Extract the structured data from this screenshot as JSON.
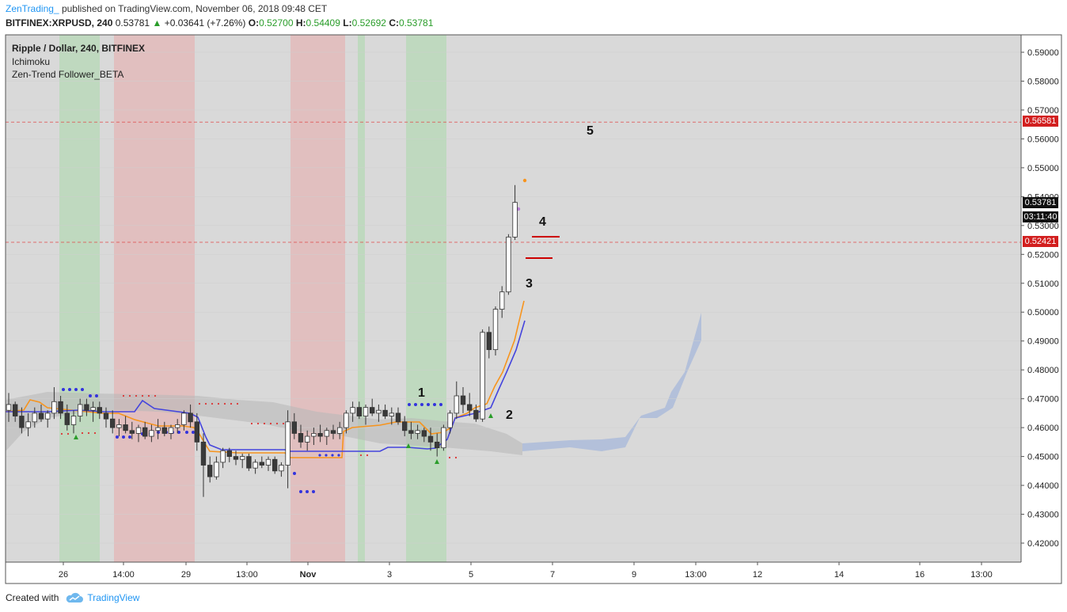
{
  "header": {
    "author": "ZenTrading_",
    "published": "published on TradingView.com, November 06, 2018 09:48 CET",
    "symbol": "BITFINEX:XRPUSD, 240",
    "last": "0.53781",
    "change": "+0.03641 (+7.26%)",
    "o_label": "O:",
    "o_val": "0.52700",
    "h_label": "H:",
    "h_val": "0.54409",
    "l_label": "L:",
    "l_val": "0.52692",
    "c_label": "C:",
    "c_val": "0.53781"
  },
  "legend": {
    "symbol": "Ripple / Dollar, 240, BITFINEX",
    "ind1": "Ichimoku",
    "ind2": "Zen-Trend Follower_BETA"
  },
  "price_tags": {
    "level_high": "0.56581",
    "last_price": "0.53781",
    "countdown": "03:11:40",
    "level_low": "0.52421"
  },
  "waves": [
    "1",
    "2",
    "3",
    "4",
    "5"
  ],
  "footer": {
    "created": "Created with",
    "brand": "TradingView"
  },
  "colors": {
    "cloud_gray": "#b9b9b9",
    "cloud_blue": "#a9b9d9",
    "tenkan": "#f7941d",
    "kijun": "#4444dd",
    "green_zone": "#a9d8a9",
    "red_zone": "#e8a9a9",
    "level_line": "#e05050"
  },
  "chart_data": {
    "type": "candlestick",
    "x_ticks": [
      "26",
      "14:00",
      "29",
      "13:00",
      "Nov",
      "3",
      "5",
      "7",
      "9",
      "13:00",
      "12",
      "14",
      "16",
      "13:00"
    ],
    "y_ticks": [
      "0.42000",
      "0.43000",
      "0.44000",
      "0.45000",
      "0.46000",
      "0.47000",
      "0.48000",
      "0.49000",
      "0.50000",
      "0.51000",
      "0.52000",
      "0.53000",
      "0.54000",
      "0.55000",
      "0.56000",
      "0.57000",
      "0.58000",
      "0.59000"
    ],
    "ylim": [
      0.415,
      0.595
    ],
    "levels": [
      0.56581,
      0.52421
    ],
    "candles": [
      [
        0.466,
        0.472,
        0.462,
        0.468
      ],
      [
        0.468,
        0.469,
        0.462,
        0.464
      ],
      [
        0.464,
        0.467,
        0.458,
        0.46
      ],
      [
        0.46,
        0.465,
        0.457,
        0.462
      ],
      [
        0.462,
        0.467,
        0.46,
        0.465
      ],
      [
        0.465,
        0.468,
        0.462,
        0.463
      ],
      [
        0.463,
        0.466,
        0.46,
        0.465
      ],
      [
        0.465,
        0.474,
        0.463,
        0.469
      ],
      [
        0.469,
        0.471,
        0.463,
        0.465
      ],
      [
        0.465,
        0.468,
        0.459,
        0.461
      ],
      [
        0.461,
        0.466,
        0.458,
        0.464
      ],
      [
        0.464,
        0.47,
        0.462,
        0.468
      ],
      [
        0.468,
        0.47,
        0.464,
        0.466
      ],
      [
        0.466,
        0.469,
        0.462,
        0.467
      ],
      [
        0.467,
        0.469,
        0.463,
        0.465
      ],
      [
        0.465,
        0.467,
        0.46,
        0.463
      ],
      [
        0.463,
        0.466,
        0.458,
        0.46
      ],
      [
        0.46,
        0.463,
        0.457,
        0.461
      ],
      [
        0.461,
        0.464,
        0.458,
        0.459
      ],
      [
        0.459,
        0.462,
        0.456,
        0.458
      ],
      [
        0.458,
        0.461,
        0.455,
        0.46
      ],
      [
        0.46,
        0.462,
        0.456,
        0.457
      ],
      [
        0.457,
        0.461,
        0.455,
        0.459
      ],
      [
        0.459,
        0.463,
        0.456,
        0.46
      ],
      [
        0.46,
        0.462,
        0.457,
        0.458
      ],
      [
        0.458,
        0.461,
        0.456,
        0.46
      ],
      [
        0.46,
        0.463,
        0.458,
        0.461
      ],
      [
        0.461,
        0.466,
        0.459,
        0.465
      ],
      [
        0.465,
        0.468,
        0.46,
        0.462
      ],
      [
        0.462,
        0.465,
        0.452,
        0.455
      ],
      [
        0.455,
        0.458,
        0.436,
        0.447
      ],
      [
        0.447,
        0.45,
        0.441,
        0.443
      ],
      [
        0.443,
        0.45,
        0.442,
        0.448
      ],
      [
        0.448,
        0.453,
        0.446,
        0.452
      ],
      [
        0.452,
        0.453,
        0.448,
        0.45
      ],
      [
        0.45,
        0.452,
        0.447,
        0.449
      ],
      [
        0.449,
        0.451,
        0.446,
        0.45
      ],
      [
        0.45,
        0.451,
        0.445,
        0.446
      ],
      [
        0.446,
        0.449,
        0.444,
        0.448
      ],
      [
        0.448,
        0.45,
        0.446,
        0.447
      ],
      [
        0.447,
        0.45,
        0.445,
        0.449
      ],
      [
        0.449,
        0.45,
        0.444,
        0.445
      ],
      [
        0.445,
        0.448,
        0.443,
        0.447
      ],
      [
        0.447,
        0.466,
        0.439,
        0.462
      ],
      [
        0.462,
        0.465,
        0.456,
        0.458
      ],
      [
        0.458,
        0.461,
        0.453,
        0.455
      ],
      [
        0.455,
        0.459,
        0.452,
        0.457
      ],
      [
        0.457,
        0.46,
        0.454,
        0.458
      ],
      [
        0.458,
        0.461,
        0.455,
        0.457
      ],
      [
        0.457,
        0.46,
        0.454,
        0.459
      ],
      [
        0.459,
        0.461,
        0.456,
        0.458
      ],
      [
        0.458,
        0.462,
        0.456,
        0.46
      ],
      [
        0.46,
        0.466,
        0.458,
        0.465
      ],
      [
        0.465,
        0.469,
        0.462,
        0.467
      ],
      [
        0.467,
        0.469,
        0.463,
        0.464
      ],
      [
        0.464,
        0.468,
        0.461,
        0.467
      ],
      [
        0.467,
        0.47,
        0.464,
        0.465
      ],
      [
        0.465,
        0.468,
        0.462,
        0.466
      ],
      [
        0.466,
        0.468,
        0.463,
        0.464
      ],
      [
        0.464,
        0.467,
        0.461,
        0.465
      ],
      [
        0.465,
        0.467,
        0.461,
        0.462
      ],
      [
        0.462,
        0.464,
        0.457,
        0.459
      ],
      [
        0.459,
        0.462,
        0.456,
        0.458
      ],
      [
        0.458,
        0.461,
        0.456,
        0.459
      ],
      [
        0.459,
        0.46,
        0.455,
        0.457
      ],
      [
        0.457,
        0.46,
        0.452,
        0.455
      ],
      [
        0.455,
        0.458,
        0.45,
        0.453
      ],
      [
        0.453,
        0.461,
        0.452,
        0.46
      ],
      [
        0.46,
        0.466,
        0.458,
        0.465
      ],
      [
        0.465,
        0.476,
        0.463,
        0.471
      ],
      [
        0.471,
        0.474,
        0.465,
        0.468
      ],
      [
        0.468,
        0.472,
        0.464,
        0.466
      ],
      [
        0.466,
        0.468,
        0.462,
        0.463
      ],
      [
        0.463,
        0.494,
        0.462,
        0.493
      ],
      [
        0.493,
        0.495,
        0.484,
        0.487
      ],
      [
        0.487,
        0.502,
        0.485,
        0.501
      ],
      [
        0.501,
        0.509,
        0.498,
        0.507
      ],
      [
        0.507,
        0.527,
        0.506,
        0.526
      ],
      [
        0.526,
        0.544,
        0.525,
        0.538
      ]
    ]
  }
}
